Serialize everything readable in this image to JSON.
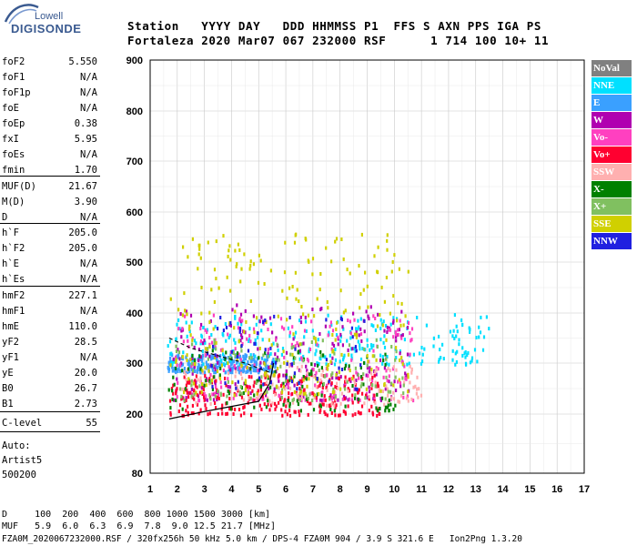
{
  "logo": {
    "line1": "Lowell",
    "line2": "DIGISONDE"
  },
  "header": {
    "row1": "Station   YYYY DAY   DDD HHMMSS P1  FFS S AXN PPS IGA PS",
    "row2": "Fortaleza 2020 Mar07 067 232000 RSF      1 714 100 10+ 11"
  },
  "params": [
    {
      "label": "foF2",
      "value": "5.550"
    },
    {
      "label": "foF1",
      "value": "N/A"
    },
    {
      "label": "foF1p",
      "value": "N/A"
    },
    {
      "label": "foE",
      "value": "N/A"
    },
    {
      "label": "foEp",
      "value": "0.38"
    },
    {
      "label": "fxI",
      "value": "5.95"
    },
    {
      "label": "foEs",
      "value": "N/A"
    },
    {
      "label": "fmin",
      "value": "1.70"
    },
    {
      "label": "MUF(D)",
      "value": "21.67"
    },
    {
      "label": "M(D)",
      "value": "3.90"
    },
    {
      "label": "D",
      "value": "N/A"
    },
    {
      "label": "h`F",
      "value": "205.0"
    },
    {
      "label": "h`F2",
      "value": "205.0"
    },
    {
      "label": "h`E",
      "value": "N/A"
    },
    {
      "label": "h`Es",
      "value": "N/A"
    },
    {
      "label": "hmF2",
      "value": "227.1"
    },
    {
      "label": "hmF1",
      "value": "N/A"
    },
    {
      "label": "hmE",
      "value": "110.0"
    },
    {
      "label": "yF2",
      "value": "28.5"
    },
    {
      "label": "yF1",
      "value": "N/A"
    },
    {
      "label": "yE",
      "value": "20.0"
    },
    {
      "label": "B0",
      "value": "26.7"
    },
    {
      "label": "B1",
      "value": "2.73"
    },
    {
      "label": "C-level",
      "value": "55"
    }
  ],
  "auto": {
    "line1": "Auto:",
    "line2": "Artist5",
    "line3": "500200"
  },
  "legend": [
    {
      "label": "NoVal",
      "bg": "#808080",
      "fg": "#ffffff"
    },
    {
      "label": "NNE",
      "bg": "#00e0ff",
      "fg": "#ffffff"
    },
    {
      "label": "E",
      "bg": "#3aa0ff",
      "fg": "#ffffff"
    },
    {
      "label": "W",
      "bg": "#b000b0",
      "fg": "#ffffff"
    },
    {
      "label": "Vo-",
      "bg": "#ff40c0",
      "fg": "#ffffff"
    },
    {
      "label": "Vo+",
      "bg": "#ff0030",
      "fg": "#ffffff"
    },
    {
      "label": "SSW",
      "bg": "#ffb0b0",
      "fg": "#ffffff"
    },
    {
      "label": "X-",
      "bg": "#008000",
      "fg": "#ffffff"
    },
    {
      "label": "X+",
      "bg": "#80c060",
      "fg": "#ffffff"
    },
    {
      "label": "SSE",
      "bg": "#d0d000",
      "fg": "#ffffff"
    },
    {
      "label": "NNW",
      "bg": "#2020e0",
      "fg": "#ffffff"
    }
  ],
  "chart_data": {
    "type": "scatter",
    "xlim": [
      1,
      17
    ],
    "ylim": [
      80,
      900
    ],
    "xticks": [
      "1",
      "2",
      "3",
      "4",
      "5",
      "6",
      "7",
      "8",
      "9",
      "10",
      "11",
      "12",
      "13",
      "14",
      "15",
      "16",
      "17"
    ],
    "yticks": [
      "900",
      "800",
      "700",
      "600",
      "500",
      "400",
      "300",
      "200",
      "80"
    ],
    "ytick_values": [
      900,
      800,
      700,
      600,
      500,
      400,
      300,
      200,
      80
    ],
    "grid": true,
    "clusters": [
      {
        "series": "E",
        "x": [
          1.6,
          5.6
        ],
        "y": [
          285,
          320
        ],
        "n": 260
      },
      {
        "series": "NNE",
        "x": [
          1.6,
          13.5
        ],
        "y": [
          300,
          400
        ],
        "n": 260
      },
      {
        "series": "W",
        "x": [
          1.8,
          10.5
        ],
        "y": [
          230,
          420
        ],
        "n": 220
      },
      {
        "series": "Vo-",
        "x": [
          1.8,
          10.8
        ],
        "y": [
          230,
          400
        ],
        "n": 200
      },
      {
        "series": "Vo+",
        "x": [
          1.7,
          9.5
        ],
        "y": [
          200,
          280
        ],
        "n": 260
      },
      {
        "series": "SSW",
        "x": [
          2,
          11
        ],
        "y": [
          220,
          300
        ],
        "n": 120
      },
      {
        "series": "X-",
        "x": [
          1.6,
          10
        ],
        "y": [
          210,
          330
        ],
        "n": 120
      },
      {
        "series": "X+",
        "x": [
          1.7,
          10.5
        ],
        "y": [
          230,
          350
        ],
        "n": 120
      },
      {
        "series": "SSE",
        "x": [
          1.7,
          10.5
        ],
        "y": [
          240,
          560
        ],
        "n": 260
      },
      {
        "series": "NNW",
        "x": [
          3,
          9
        ],
        "y": [
          250,
          400
        ],
        "n": 60
      }
    ],
    "trace_solid": [
      [
        1.7,
        190
      ],
      [
        3,
        205
      ],
      [
        4,
        215
      ],
      [
        5,
        225
      ],
      [
        5.4,
        260
      ],
      [
        5.55,
        300
      ]
    ],
    "trace_dashed": [
      [
        1.7,
        350
      ],
      [
        2.5,
        330
      ],
      [
        3.5,
        315
      ],
      [
        4.5,
        300
      ],
      [
        5.5,
        280
      ]
    ]
  },
  "bottom": {
    "d_row": "D     100  200  400  600  800 1000 1500 3000 [km]",
    "muf_row": "MUF   5.9  6.0  6.3  6.9  7.8  9.0 12.5 21.7 [MHz]",
    "file_row": "FZA0M_2020067232000.RSF / 320fx256h 50 kHz 5.0 km / DPS-4 FZA0M 904 / 3.9 S 321.6 E   Ion2Png 1.3.20"
  }
}
